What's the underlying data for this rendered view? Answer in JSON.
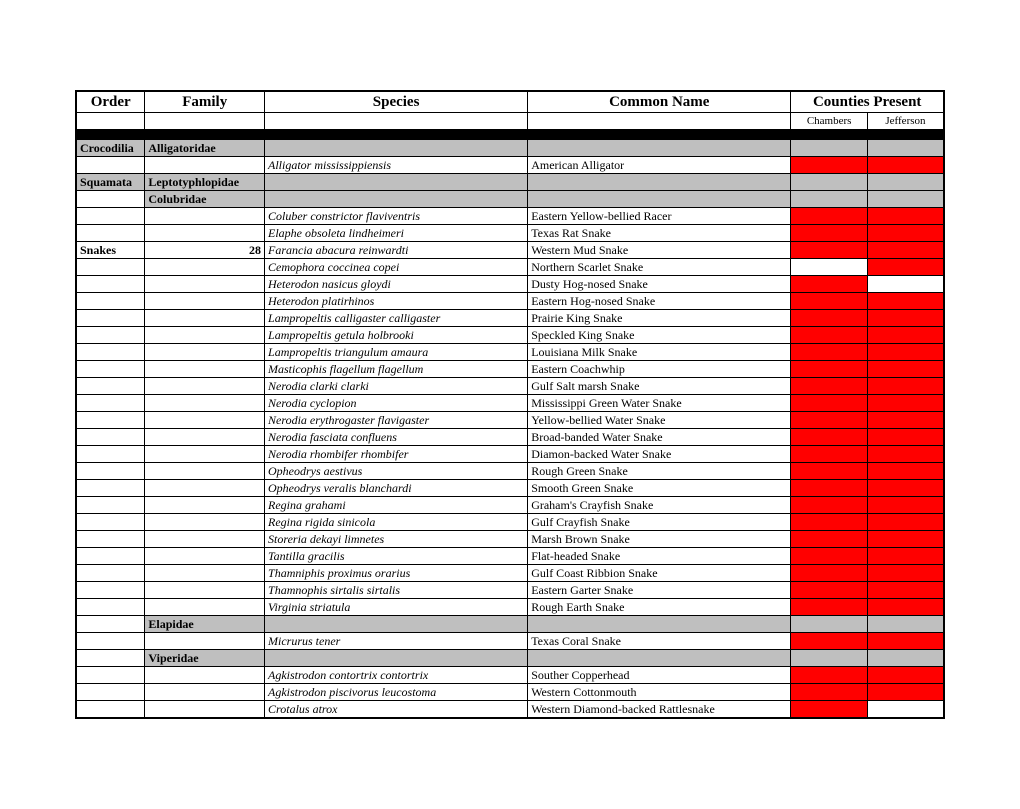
{
  "columns": {
    "order": "Order",
    "family": "Family",
    "species": "Species",
    "common": "Common Name",
    "counties": "Counties Present",
    "county1": "Chambers",
    "county2": "Jefferson"
  },
  "groups": [
    {
      "type": "taxon",
      "order": "Crocodilia",
      "family": "Alligatoridae"
    },
    {
      "type": "species",
      "species": "Alligator mississippiensis",
      "common": "American Alligator",
      "c1": true,
      "c2": true
    },
    {
      "type": "taxon",
      "order": "Squamata",
      "family": "Leptotyphlopidae"
    },
    {
      "type": "taxon",
      "family": "Colubridae"
    },
    {
      "type": "species",
      "species": "Coluber constrictor flaviventris",
      "common": "Eastern Yellow-bellied Racer",
      "c1": true,
      "c2": true
    },
    {
      "type": "species",
      "species": "Elaphe obsoleta lindheimeri",
      "common": "Texas Rat Snake",
      "c1": true,
      "c2": true
    },
    {
      "type": "species",
      "order": "Snakes",
      "count": "28",
      "species": "Farancia abacura reinwardti",
      "common": "Western Mud Snake",
      "c1": true,
      "c2": true
    },
    {
      "type": "species",
      "species": "Cemophora coccinea copei",
      "common": "Northern Scarlet Snake",
      "c1": false,
      "c2": true
    },
    {
      "type": "species",
      "species": "Heterodon nasicus gloydi",
      "common": "Dusty Hog-nosed Snake",
      "c1": true,
      "c2": false
    },
    {
      "type": "species",
      "species": "Heterodon platirhinos",
      "common": "Eastern Hog-nosed Snake",
      "c1": true,
      "c2": true
    },
    {
      "type": "species",
      "species": "Lampropeltis calligaster calligaster",
      "common": "Prairie King Snake",
      "c1": true,
      "c2": true
    },
    {
      "type": "species",
      "species": "Lampropeltis getula holbrooki",
      "common": "Speckled King Snake",
      "c1": true,
      "c2": true
    },
    {
      "type": "species",
      "species": "Lampropeltis triangulum amaura",
      "common": "Louisiana Milk Snake",
      "c1": true,
      "c2": true
    },
    {
      "type": "species",
      "species": "Masticophis flagellum flagellum",
      "common": "Eastern Coachwhip",
      "c1": true,
      "c2": true
    },
    {
      "type": "species",
      "species": "Nerodia clarki clarki",
      "common": "Gulf Salt marsh Snake",
      "c1": true,
      "c2": true
    },
    {
      "type": "species",
      "species": "Nerodia cyclopion",
      "common": "Mississippi Green Water Snake",
      "c1": true,
      "c2": true
    },
    {
      "type": "species",
      "species": "Nerodia erythrogaster flavigaster",
      "common": "Yellow-bellied Water Snake",
      "c1": true,
      "c2": true
    },
    {
      "type": "species",
      "species": "Nerodia fasciata confluens",
      "common": "Broad-banded Water Snake",
      "c1": true,
      "c2": true
    },
    {
      "type": "species",
      "species": "Nerodia rhombifer rhombifer",
      "common": "Diamon-backed Water Snake",
      "c1": true,
      "c2": true
    },
    {
      "type": "species",
      "species": "Opheodrys aestivus",
      "common": "Rough Green Snake",
      "c1": true,
      "c2": true
    },
    {
      "type": "species",
      "species": "Opheodrys veralis blanchardi",
      "common": "Smooth Green Snake",
      "c1": true,
      "c2": true
    },
    {
      "type": "species",
      "species": "Regina grahami",
      "common": "Graham's Crayfish Snake",
      "c1": true,
      "c2": true
    },
    {
      "type": "species",
      "species": "Regina rigida sinicola",
      "common": "Gulf Crayfish Snake",
      "c1": true,
      "c2": true
    },
    {
      "type": "species",
      "species": "Storeria dekayi limnetes",
      "common": "Marsh Brown Snake",
      "c1": true,
      "c2": true
    },
    {
      "type": "species",
      "species": "Tantilla gracilis",
      "common": "Flat-headed Snake",
      "c1": true,
      "c2": true
    },
    {
      "type": "species",
      "species": "Thamniphis proximus orarius",
      "common": "Gulf Coast Ribbion Snake",
      "c1": true,
      "c2": true
    },
    {
      "type": "species",
      "species": "Thamnophis sirtalis sirtalis",
      "common": "Eastern Garter Snake",
      "c1": true,
      "c2": true
    },
    {
      "type": "species",
      "species": "Virginia striatula",
      "common": "Rough Earth Snake",
      "c1": true,
      "c2": true
    },
    {
      "type": "taxon",
      "family": "Elapidae"
    },
    {
      "type": "species",
      "species": "Micrurus tener",
      "common": "Texas Coral Snake",
      "c1": true,
      "c2": true
    },
    {
      "type": "taxon",
      "family": "Viperidae"
    },
    {
      "type": "species",
      "species": "Agkistrodon contortrix contortrix",
      "common": "Souther Copperhead",
      "c1": true,
      "c2": true
    },
    {
      "type": "species",
      "species": "Agkistrodon piscivorus leucostoma",
      "common": "Western Cottonmouth",
      "c1": true,
      "c2": true
    },
    {
      "type": "species",
      "species": "Crotalus atrox",
      "common": "Western Diamond-backed Rattlesnake",
      "c1": true,
      "c2": false
    }
  ],
  "colors": {
    "present": "#ff0000",
    "taxon_row": "#bfbfbf",
    "divider": "#000000"
  }
}
